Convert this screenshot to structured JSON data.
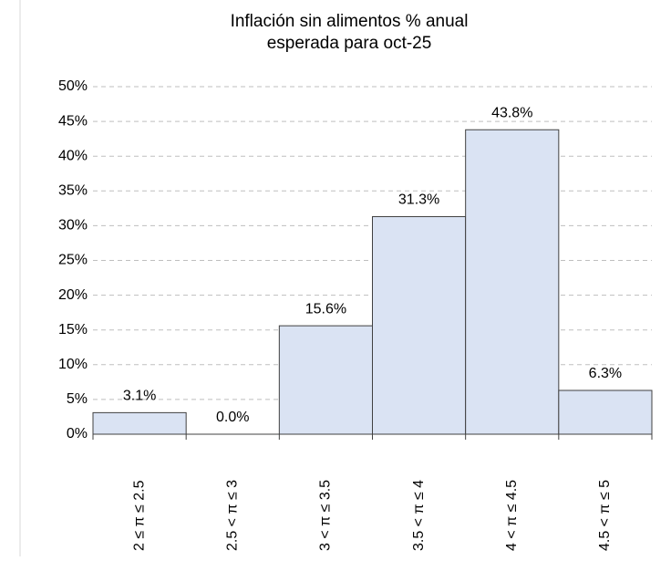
{
  "chart_data": {
    "type": "bar",
    "title": [
      "Inflación sin alimentos % anual",
      "esperada para oct-25"
    ],
    "categories": [
      "2 ≤ π ≤ 2.5",
      "2.5 < π ≤ 3",
      "3 < π ≤ 3.5",
      "3.5 < π ≤ 4",
      "4 < π ≤ 4.5",
      "4.5 < π ≤ 5"
    ],
    "values": [
      3.1,
      0.0,
      15.6,
      31.3,
      43.8,
      6.3
    ],
    "value_labels": [
      "3.1%",
      "0.0%",
      "15.6%",
      "31.3%",
      "43.8%",
      "6.3%"
    ],
    "color": "#dae3f3",
    "ylim": [
      0,
      50
    ],
    "yticks": [
      {
        "value": 0,
        "label": "0%"
      },
      {
        "value": 5,
        "label": "5%"
      },
      {
        "value": 10,
        "label": "10%"
      },
      {
        "value": 15,
        "label": "15%"
      },
      {
        "value": 20,
        "label": "20%"
      },
      {
        "value": 25,
        "label": "25%"
      },
      {
        "value": 30,
        "label": "30%"
      },
      {
        "value": 35,
        "label": "35%"
      },
      {
        "value": 40,
        "label": "40%"
      },
      {
        "value": 45,
        "label": "45%"
      },
      {
        "value": 50,
        "label": "50%"
      }
    ],
    "grid": true
  }
}
